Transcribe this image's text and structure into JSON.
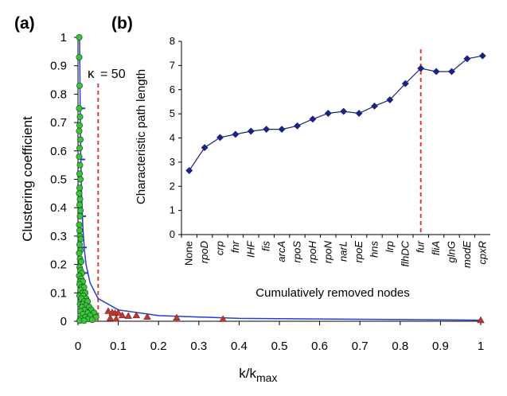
{
  "panels": {
    "a": "(a)",
    "b": "(b)"
  },
  "annotation": {
    "prefix": "κ",
    "text": "= 50"
  },
  "chart_data": [
    {
      "type": "scatter",
      "panel": "(a)",
      "xlabel": "k/k",
      "xlabel_sub": "max",
      "ylabel": "Clustering coefficient",
      "xlim": [
        0,
        1
      ],
      "ylim": [
        0,
        1
      ],
      "x_ticks": [
        "0",
        "0.1",
        "0.2",
        "0.3",
        "0.4",
        "0.5",
        "0.6",
        "0.7",
        "0.8",
        "0.9",
        "1"
      ],
      "y_ticks": [
        "0",
        "0.1",
        "0.2",
        "0.3",
        "0.4",
        "0.5",
        "0.6",
        "0.7",
        "0.8",
        "0.9",
        "1"
      ],
      "threshold_x": 0.05,
      "series": [
        {
          "marker": "circle",
          "color": "#3cc43c",
          "points": [
            [
              0.003,
              1.0
            ],
            [
              0.003,
              0.93
            ],
            [
              0.004,
              0.83
            ],
            [
              0.003,
              0.75
            ],
            [
              0.005,
              0.72
            ],
            [
              0.004,
              0.69
            ],
            [
              0.003,
              0.67
            ],
            [
              0.006,
              0.64
            ],
            [
              0.004,
              0.61
            ],
            [
              0.003,
              0.58
            ],
            [
              0.005,
              0.55
            ],
            [
              0.004,
              0.52
            ],
            [
              0.006,
              0.5
            ],
            [
              0.004,
              0.47
            ],
            [
              0.003,
              0.45
            ],
            [
              0.005,
              0.43
            ],
            [
              0.004,
              0.41
            ],
            [
              0.006,
              0.39
            ],
            [
              0.005,
              0.37
            ],
            [
              0.003,
              0.34
            ],
            [
              0.004,
              0.32
            ],
            [
              0.005,
              0.3
            ],
            [
              0.007,
              0.29
            ],
            [
              0.004,
              0.27
            ],
            [
              0.006,
              0.25
            ],
            [
              0.003,
              0.24
            ],
            [
              0.005,
              0.22
            ],
            [
              0.008,
              0.21
            ],
            [
              0.004,
              0.19
            ],
            [
              0.006,
              0.18
            ],
            [
              0.01,
              0.17
            ],
            [
              0.003,
              0.16
            ],
            [
              0.008,
              0.15
            ],
            [
              0.005,
              0.14
            ],
            [
              0.012,
              0.14
            ],
            [
              0.004,
              0.13
            ],
            [
              0.009,
              0.12
            ],
            [
              0.015,
              0.12
            ],
            [
              0.006,
              0.11
            ],
            [
              0.011,
              0.1
            ],
            [
              0.018,
              0.1
            ],
            [
              0.004,
              0.09
            ],
            [
              0.013,
              0.09
            ],
            [
              0.02,
              0.08
            ],
            [
              0.008,
              0.08
            ],
            [
              0.016,
              0.07
            ],
            [
              0.024,
              0.07
            ],
            [
              0.005,
              0.06
            ],
            [
              0.012,
              0.06
            ],
            [
              0.02,
              0.055
            ],
            [
              0.028,
              0.05
            ],
            [
              0.01,
              0.05
            ],
            [
              0.016,
              0.04
            ],
            [
              0.033,
              0.04
            ],
            [
              0.006,
              0.035
            ],
            [
              0.024,
              0.03
            ],
            [
              0.04,
              0.03
            ],
            [
              0.012,
              0.025
            ],
            [
              0.03,
              0.02
            ],
            [
              0.018,
              0.015
            ],
            [
              0.045,
              0.015
            ],
            [
              0.006,
              0.01
            ],
            [
              0.025,
              0.008
            ],
            [
              0.035,
              0.005
            ],
            [
              0.004,
              0.002
            ],
            [
              0.015,
              0.002
            ]
          ]
        },
        {
          "marker": "triangle",
          "color": "#c0392b",
          "points": [
            [
              0.075,
              0.035
            ],
            [
              0.085,
              0.03
            ],
            [
              0.092,
              0.028
            ],
            [
              0.1,
              0.03
            ],
            [
              0.11,
              0.02
            ],
            [
              0.125,
              0.018
            ],
            [
              0.145,
              0.02
            ],
            [
              0.172,
              0.015
            ],
            [
              0.245,
              0.012
            ],
            [
              0.36,
              0.007
            ],
            [
              1.0,
              0.003
            ],
            [
              0.08,
              0.01
            ],
            [
              0.095,
              0.008
            ]
          ]
        }
      ],
      "fit_line": {
        "color": "#1f3fd1",
        "x": [
          0.004,
          0.0055,
          0.007,
          0.009,
          0.012,
          0.016,
          0.02,
          0.03,
          0.05,
          0.1,
          0.2,
          0.4,
          1.0
        ],
        "y": [
          1.0,
          0.73,
          0.57,
          0.44,
          0.33,
          0.25,
          0.2,
          0.135,
          0.08,
          0.04,
          0.02,
          0.01,
          0.004
        ]
      }
    },
    {
      "type": "line",
      "panel": "(b)",
      "xlabel": "Cumulatively removed nodes",
      "ylabel": "Characteristic path length",
      "ylim": [
        0,
        8
      ],
      "y_ticks": [
        "0",
        "1",
        "2",
        "3",
        "4",
        "5",
        "6",
        "7",
        "8"
      ],
      "categories": [
        "None",
        "rpoD",
        "crp",
        "fnr",
        "IHF",
        "fis",
        "arcA",
        "rpoS",
        "rpoH",
        "rpoN",
        "narL",
        "rpoE",
        "hns",
        "lrp",
        "flhDC",
        "fur",
        "fliA",
        "glnG",
        "modE",
        "cpxR"
      ],
      "values": [
        2.65,
        3.6,
        4.02,
        4.15,
        4.28,
        4.36,
        4.36,
        4.5,
        4.78,
        5.02,
        5.1,
        5.02,
        5.32,
        5.58,
        6.25,
        6.88,
        6.75,
        6.75,
        7.28,
        7.4
      ],
      "threshold_after": "fur",
      "color": "#1a237e"
    }
  ]
}
